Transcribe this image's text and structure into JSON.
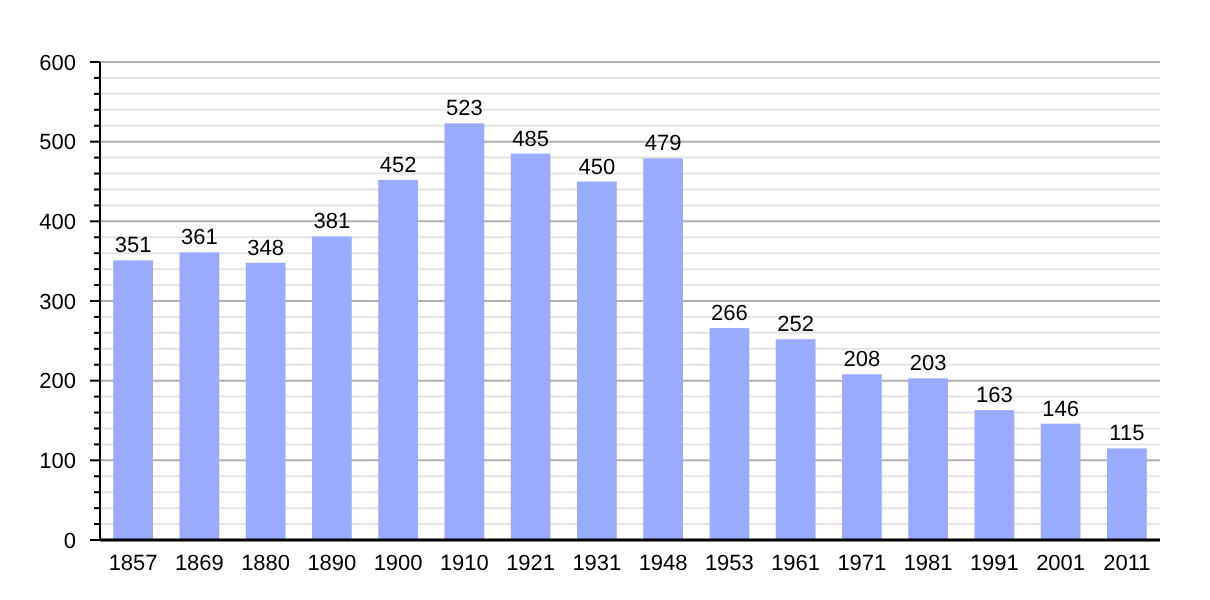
{
  "chart_data": {
    "type": "bar",
    "categories": [
      "1857",
      "1869",
      "1880",
      "1890",
      "1900",
      "1910",
      "1921",
      "1931",
      "1948",
      "1953",
      "1961",
      "1971",
      "1981",
      "1991",
      "2001",
      "2011"
    ],
    "values": [
      351,
      361,
      348,
      381,
      452,
      523,
      485,
      450,
      479,
      266,
      252,
      208,
      203,
      163,
      146,
      115
    ],
    "color": "#99aaff",
    "data_labels": true,
    "grid": "y",
    "ylim": [
      0,
      600
    ],
    "yticks": [
      0,
      {
        "value": 20,
        "label": null
      },
      {
        "value": 40,
        "label": null
      },
      {
        "value": 60,
        "label": null
      },
      {
        "value": 80,
        "label": null
      },
      100,
      {
        "value": 120,
        "label": null
      },
      {
        "value": 140,
        "label": null
      },
      {
        "value": 160,
        "label": null
      },
      {
        "value": 180,
        "label": null
      },
      200,
      {
        "value": 220,
        "label": null
      },
      {
        "value": 240,
        "label": null
      },
      {
        "value": 260,
        "label": null
      },
      {
        "value": 280,
        "label": null
      },
      300,
      {
        "value": 320,
        "label": null
      },
      {
        "value": 340,
        "label": null
      },
      {
        "value": 360,
        "label": null
      },
      {
        "value": 380,
        "label": null
      },
      400,
      {
        "value": 420,
        "label": null
      },
      {
        "value": 440,
        "label": null
      },
      {
        "value": 460,
        "label": null
      },
      {
        "value": 480,
        "label": null
      },
      500,
      {
        "value": 520,
        "label": null
      },
      {
        "value": 540,
        "label": null
      },
      {
        "value": 560,
        "label": null
      },
      {
        "value": 580,
        "label": null
      },
      600
    ]
  }
}
